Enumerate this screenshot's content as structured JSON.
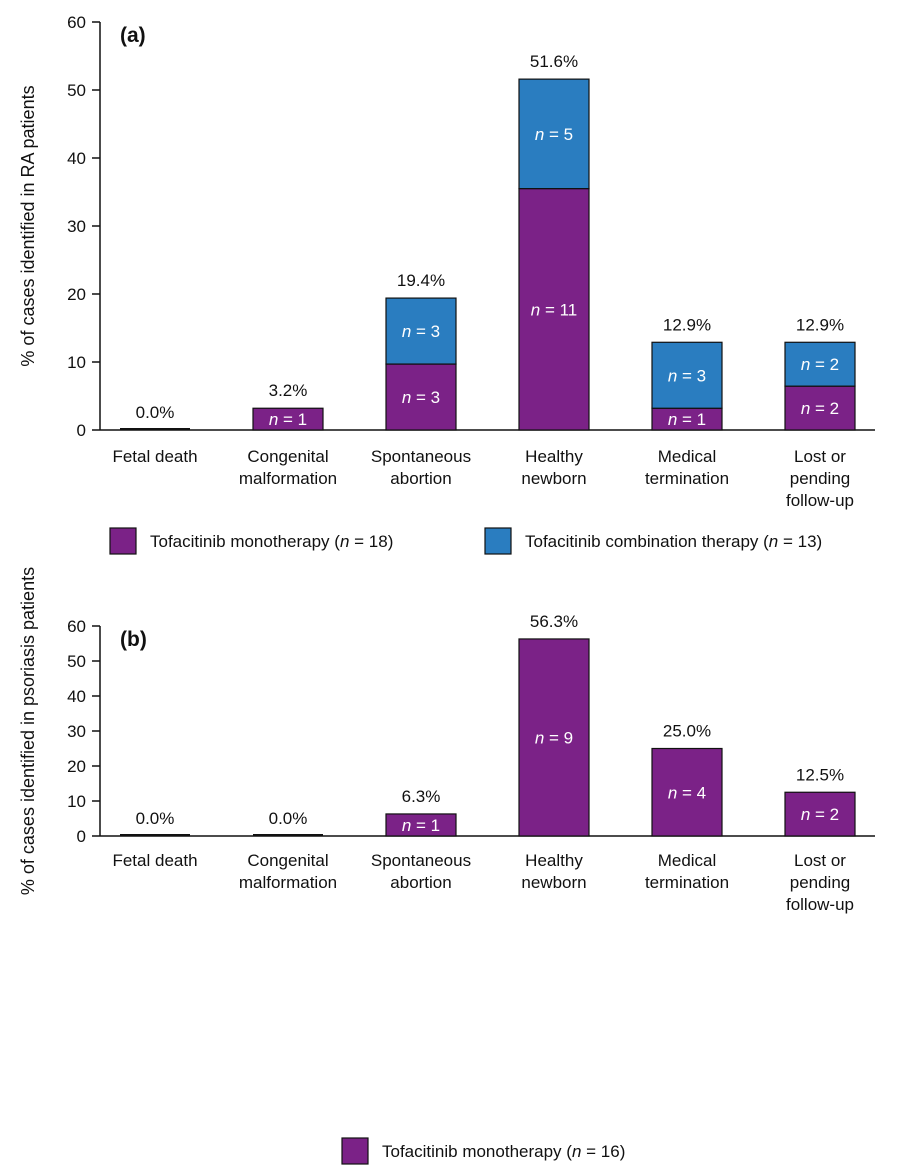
{
  "colors": {
    "mono": "#7b2287",
    "combo": "#2a7dc0",
    "axis": "#111111"
  },
  "chart_data": [
    {
      "type": "bar",
      "stacked": true,
      "panel_label": "(a)",
      "ylabel": "% of cases identified in RA patients",
      "ylim": [
        0,
        60
      ],
      "yticks": [
        0,
        10,
        20,
        30,
        40,
        50,
        60
      ],
      "categories": [
        [
          "Fetal death"
        ],
        [
          "Congenital",
          "malformation"
        ],
        [
          "Spontaneous",
          "abortion"
        ],
        [
          "Healthy",
          "newborn"
        ],
        [
          "Medical",
          "termination"
        ],
        [
          "Lost or",
          "pending",
          "follow-up"
        ]
      ],
      "totals": [
        "0.0%",
        "3.2%",
        "19.4%",
        "51.6%",
        "12.9%",
        "12.9%"
      ],
      "total_values": [
        0.0,
        3.2,
        19.4,
        51.6,
        12.9,
        12.9
      ],
      "series": [
        {
          "name": "Tofacitinib monotherapy",
          "legend_n": "18",
          "color_key": "mono",
          "values": [
            0,
            3.2,
            9.7,
            35.5,
            3.2,
            6.45
          ],
          "n": [
            0,
            1,
            3,
            11,
            1,
            2
          ]
        },
        {
          "name": "Tofacitinib combination therapy",
          "legend_n": "13",
          "color_key": "combo",
          "values": [
            0,
            0,
            9.7,
            16.1,
            9.7,
            6.45
          ],
          "n": [
            0,
            0,
            3,
            5,
            3,
            2
          ]
        }
      ]
    },
    {
      "type": "bar",
      "stacked": true,
      "panel_label": "(b)",
      "ylabel": "% of cases identified in psoriasis patients",
      "ylim": [
        0,
        60
      ],
      "yticks": [
        0,
        10,
        20,
        30,
        40,
        50,
        60
      ],
      "categories": [
        [
          "Fetal death"
        ],
        [
          "Congenital",
          "malformation"
        ],
        [
          "Spontaneous",
          "abortion"
        ],
        [
          "Healthy",
          "newborn"
        ],
        [
          "Medical",
          "termination"
        ],
        [
          "Lost or",
          "pending",
          "follow-up"
        ]
      ],
      "totals": [
        "0.0%",
        "0.0%",
        "6.3%",
        "56.3%",
        "25.0%",
        "12.5%"
      ],
      "total_values": [
        0.0,
        0.0,
        6.3,
        56.3,
        25.0,
        12.5
      ],
      "series": [
        {
          "name": "Tofacitinib monotherapy",
          "legend_n": "16",
          "color_key": "mono",
          "values": [
            0,
            0,
            6.3,
            56.3,
            25.0,
            12.5
          ],
          "n": [
            0,
            0,
            1,
            9,
            4,
            2
          ]
        }
      ]
    }
  ]
}
